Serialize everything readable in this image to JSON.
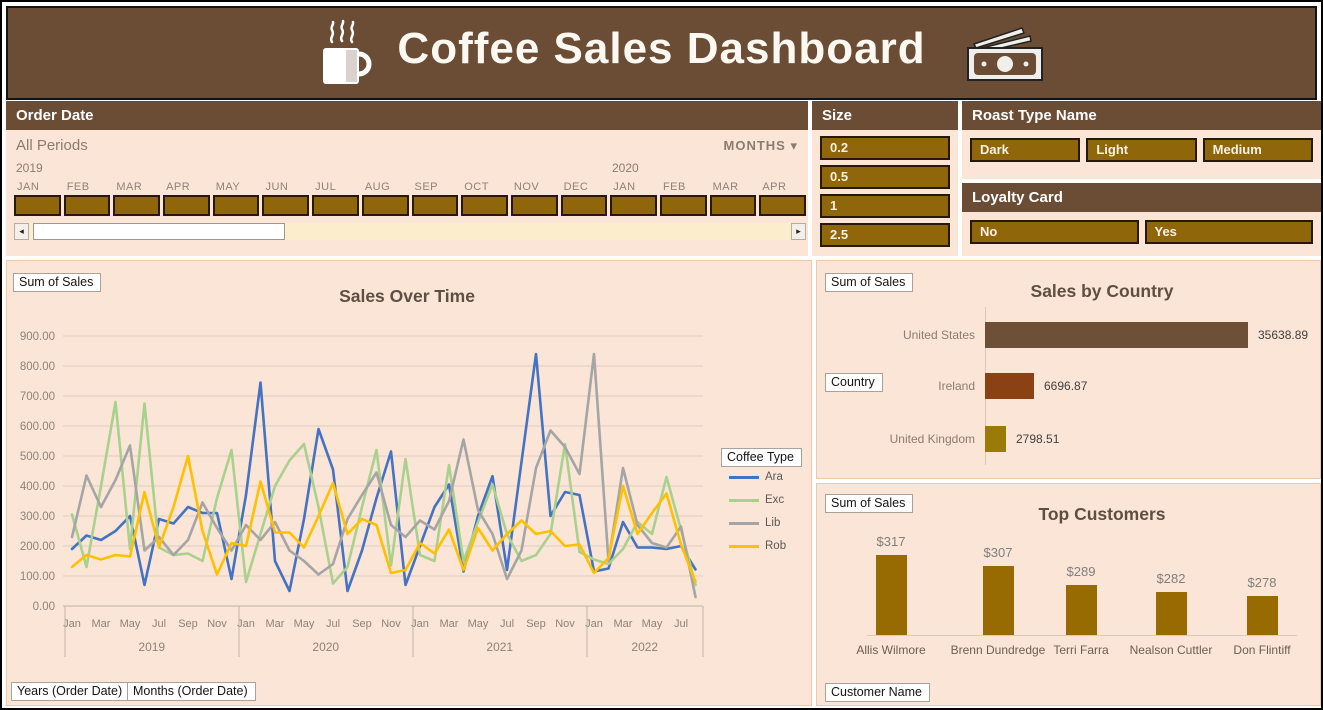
{
  "colors": {
    "header_brown": "#6B4C35",
    "panel_bg": "#FBE5D6",
    "slicer_gold": "#8F6609",
    "bar_us": "#6E4F37",
    "bar_ireland": "#8A4214",
    "bar_uk": "#9A7B07",
    "bar_customer": "#976B02",
    "series_ara": "#4472C4",
    "series_exc": "#A9D18E",
    "series_lib": "#A5A5A5",
    "series_rob": "#FFC000"
  },
  "header": {
    "title": "Coffee Sales Dashboard",
    "left_icon": "coffee-cup-icon",
    "right_icon": "money-icon"
  },
  "timeline": {
    "title": "Order Date",
    "all_periods": "All Periods",
    "granularity": "MONTHS",
    "dropdown_arrow": "▾",
    "year_left": "2019",
    "year_right": "2020",
    "months": [
      "JAN",
      "FEB",
      "MAR",
      "APR",
      "MAY",
      "JUN",
      "JUL",
      "AUG",
      "SEP",
      "OCT",
      "NOV",
      "DEC",
      "JAN",
      "FEB",
      "MAR",
      "APR"
    ],
    "scroll_left_arrow": "◂",
    "scroll_right_arrow": "▸"
  },
  "slicers": {
    "size": {
      "title": "Size",
      "options": [
        "0.2",
        "0.5",
        "1",
        "2.5"
      ]
    },
    "roast": {
      "title": "Roast Type Name",
      "options": [
        "Dark",
        "Light",
        "Medium"
      ]
    },
    "loyalty": {
      "title": "Loyalty Card",
      "options": [
        "No",
        "Yes"
      ]
    }
  },
  "chart_data": [
    {
      "id": "sales-over-time",
      "type": "line",
      "title": "Sales Over Time",
      "legend_title": "Coffee Type",
      "legend_position": "right",
      "field_buttons": [
        "Sum of Sales",
        "Coffee Type",
        "Years (Order Date)",
        "Months (Order Date)"
      ],
      "ylim": [
        0,
        900
      ],
      "ytick_step": 100,
      "y_format_decimals": 2,
      "grid": true,
      "years": [
        "2019",
        "2020",
        "2021",
        "2022"
      ],
      "months_per_year": [
        12,
        12,
        12,
        8
      ],
      "x_tick_cycle": [
        "Jan",
        "Mar",
        "May",
        "Jul",
        "Sep",
        "Nov"
      ],
      "series": [
        {
          "name": "Ara",
          "color": "#4472C4",
          "values": [
            190,
            235,
            220,
            250,
            300,
            70,
            290,
            275,
            330,
            310,
            310,
            90,
            370,
            745,
            150,
            50,
            290,
            590,
            455,
            50,
            185,
            360,
            515,
            70,
            200,
            330,
            405,
            115,
            300,
            433,
            120,
            480,
            840,
            300,
            380,
            370,
            115,
            125,
            280,
            195,
            195,
            190,
            200,
            122
          ]
        },
        {
          "name": "Exc",
          "color": "#A9D18E",
          "values": [
            305,
            130,
            400,
            680,
            190,
            675,
            195,
            170,
            175,
            150,
            360,
            520,
            80,
            240,
            400,
            485,
            540,
            330,
            75,
            130,
            330,
            520,
            135,
            490,
            170,
            150,
            470,
            150,
            280,
            405,
            240,
            150,
            170,
            240,
            540,
            180,
            155,
            140,
            190,
            280,
            240,
            430,
            255,
            70
          ]
        },
        {
          "name": "Lib",
          "color": "#A5A5A5",
          "values": [
            230,
            435,
            330,
            420,
            535,
            185,
            230,
            170,
            220,
            345,
            260,
            185,
            270,
            220,
            280,
            185,
            150,
            105,
            140,
            290,
            370,
            445,
            270,
            230,
            285,
            255,
            350,
            555,
            320,
            240,
            90,
            185,
            460,
            585,
            530,
            440,
            840,
            150,
            460,
            270,
            210,
            195,
            265,
            30
          ]
        },
        {
          "name": "Rob",
          "color": "#FFC000",
          "values": [
            130,
            170,
            155,
            170,
            165,
            380,
            195,
            330,
            500,
            250,
            105,
            210,
            200,
            415,
            245,
            245,
            195,
            300,
            410,
            240,
            290,
            270,
            110,
            120,
            210,
            175,
            255,
            120,
            260,
            185,
            240,
            285,
            240,
            250,
            200,
            205,
            110,
            160,
            400,
            240,
            310,
            375,
            205,
            80
          ]
        }
      ]
    },
    {
      "id": "sales-by-country",
      "type": "bar",
      "orientation": "horizontal",
      "title": "Sales by Country",
      "field_buttons": [
        "Sum of Sales",
        "Country"
      ],
      "categories": [
        "United States",
        "Ireland",
        "United Kingdom"
      ],
      "values": [
        35638.89,
        6696.87,
        2798.51
      ],
      "value_labels": [
        "35638.89",
        "6696.87",
        "2798.51"
      ],
      "bar_colors": [
        "#6E4F37",
        "#8A4214",
        "#9A7B07"
      ]
    },
    {
      "id": "top-customers",
      "type": "bar",
      "orientation": "vertical",
      "title": "Top Customers",
      "field_buttons": [
        "Sum of Sales",
        "Customer Name"
      ],
      "categories": [
        "Allis Wilmore",
        "Brenn Dundredge",
        "Terri Farra",
        "Nealson Cuttler",
        "Don Flintiff"
      ],
      "values": [
        317,
        307,
        289,
        282,
        278
      ],
      "value_labels": [
        "$317",
        "$307",
        "$289",
        "$282",
        "$278"
      ],
      "bar_color": "#976B02"
    }
  ]
}
